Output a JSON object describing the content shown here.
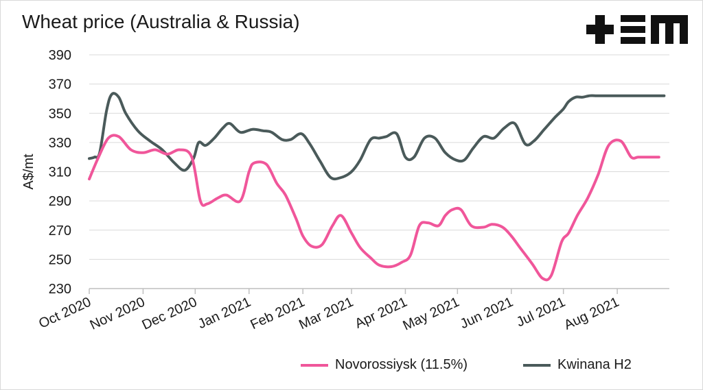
{
  "chart_data": {
    "type": "line",
    "title": "Wheat price (Australia & Russia)",
    "ylabel": "A$/mt",
    "xlabel": "",
    "ylim": [
      230,
      390
    ],
    "yticks": [
      230,
      250,
      270,
      290,
      310,
      330,
      350,
      370,
      390
    ],
    "xlim": [
      "2020-10-01",
      "2021-08-31"
    ],
    "xticks": [
      {
        "date": "2020-10-01",
        "label": "Oct 2020"
      },
      {
        "date": "2020-11-01",
        "label": "Nov 2020"
      },
      {
        "date": "2020-12-01",
        "label": "Dec 2020"
      },
      {
        "date": "2021-01-01",
        "label": "Jan 2021"
      },
      {
        "date": "2021-02-01",
        "label": "Feb 2021"
      },
      {
        "date": "2021-03-01",
        "label": "Mar 2021"
      },
      {
        "date": "2021-04-01",
        "label": "Apr 2021"
      },
      {
        "date": "2021-05-01",
        "label": "May 2021"
      },
      {
        "date": "2021-06-01",
        "label": "Jun 2021"
      },
      {
        "date": "2021-07-01",
        "label": "Jul 2021"
      },
      {
        "date": "2021-08-01",
        "label": "Aug 2021"
      }
    ],
    "grid": true,
    "legend": "bottom-right",
    "series": [
      {
        "name": "Novorossiysk (11.5%)",
        "color": "#f0569a",
        "x": [
          "2020-10-01",
          "2020-10-06",
          "2020-10-12",
          "2020-10-18",
          "2020-10-25",
          "2020-11-01",
          "2020-11-08",
          "2020-11-15",
          "2020-11-22",
          "2020-11-29",
          "2020-12-04",
          "2020-12-08",
          "2020-12-14",
          "2020-12-19",
          "2020-12-27",
          "2021-01-01",
          "2021-01-04",
          "2021-01-11",
          "2021-01-17",
          "2021-01-22",
          "2021-01-28",
          "2021-02-01",
          "2021-02-06",
          "2021-02-12",
          "2021-02-18",
          "2021-02-23",
          "2021-03-01",
          "2021-03-06",
          "2021-03-12",
          "2021-03-17",
          "2021-03-24",
          "2021-03-30",
          "2021-04-04",
          "2021-04-09",
          "2021-04-14",
          "2021-04-20",
          "2021-04-24",
          "2021-04-28",
          "2021-05-03",
          "2021-05-09",
          "2021-05-16",
          "2021-05-21",
          "2021-05-27",
          "2021-06-01",
          "2021-06-06",
          "2021-06-13",
          "2021-06-19",
          "2021-06-24",
          "2021-06-30",
          "2021-07-04",
          "2021-07-09",
          "2021-07-15",
          "2021-07-21",
          "2021-07-27",
          "2021-08-03",
          "2021-08-09",
          "2021-08-13",
          "2021-08-18",
          "2021-08-25"
        ],
        "values": [
          305,
          319,
          333,
          334,
          325,
          323,
          325,
          322,
          325,
          320,
          290,
          288,
          292,
          294,
          290,
          310,
          316,
          315,
          302,
          294,
          278,
          266,
          259,
          260,
          273,
          280,
          268,
          258,
          251,
          246,
          245,
          248,
          253,
          273,
          275,
          273,
          280,
          284,
          284,
          273,
          272,
          274,
          272,
          266,
          258,
          247,
          237,
          239,
          262,
          268,
          280,
          292,
          308,
          328,
          331,
          320,
          320,
          320,
          320
        ]
      },
      {
        "name": "Kwinana H2",
        "color": "#4a5a5a",
        "x": [
          "2020-10-01",
          "2020-10-04",
          "2020-10-07",
          "2020-10-11",
          "2020-10-14",
          "2020-10-18",
          "2020-10-22",
          "2020-10-29",
          "2020-11-05",
          "2020-11-12",
          "2020-11-19",
          "2020-11-25",
          "2020-11-30",
          "2020-12-03",
          "2020-12-07",
          "2020-12-12",
          "2020-12-17",
          "2020-12-21",
          "2020-12-27",
          "2021-01-03",
          "2021-01-09",
          "2021-01-14",
          "2021-01-20",
          "2021-01-25",
          "2021-01-31",
          "2021-02-05",
          "2021-02-11",
          "2021-02-17",
          "2021-02-23",
          "2021-03-01",
          "2021-03-06",
          "2021-03-12",
          "2021-03-17",
          "2021-03-21",
          "2021-03-27",
          "2021-04-01",
          "2021-04-06",
          "2021-04-12",
          "2021-04-18",
          "2021-04-24",
          "2021-04-30",
          "2021-05-05",
          "2021-05-10",
          "2021-05-16",
          "2021-05-22",
          "2021-05-28",
          "2021-06-03",
          "2021-06-09",
          "2021-06-14",
          "2021-06-20",
          "2021-06-26",
          "2021-07-01",
          "2021-07-04",
          "2021-07-08",
          "2021-07-12",
          "2021-07-16",
          "2021-07-20",
          "2021-07-24",
          "2021-07-28",
          "2021-08-03",
          "2021-08-09",
          "2021-08-15",
          "2021-08-21",
          "2021-08-28"
        ],
        "values": [
          319,
          320,
          323,
          352,
          363,
          361,
          350,
          338,
          331,
          325,
          316,
          311,
          319,
          330,
          328,
          333,
          340,
          343,
          337,
          339,
          338,
          337,
          332,
          332,
          336,
          329,
          317,
          306,
          306,
          310,
          318,
          332,
          333,
          334,
          336,
          320,
          320,
          333,
          333,
          323,
          318,
          318,
          326,
          334,
          333,
          340,
          343,
          329,
          331,
          339,
          347,
          353,
          358,
          361,
          361,
          362,
          362,
          362,
          362,
          362,
          362,
          362,
          362,
          362
        ]
      }
    ]
  },
  "brand": {
    "logo_text": "+EM"
  }
}
